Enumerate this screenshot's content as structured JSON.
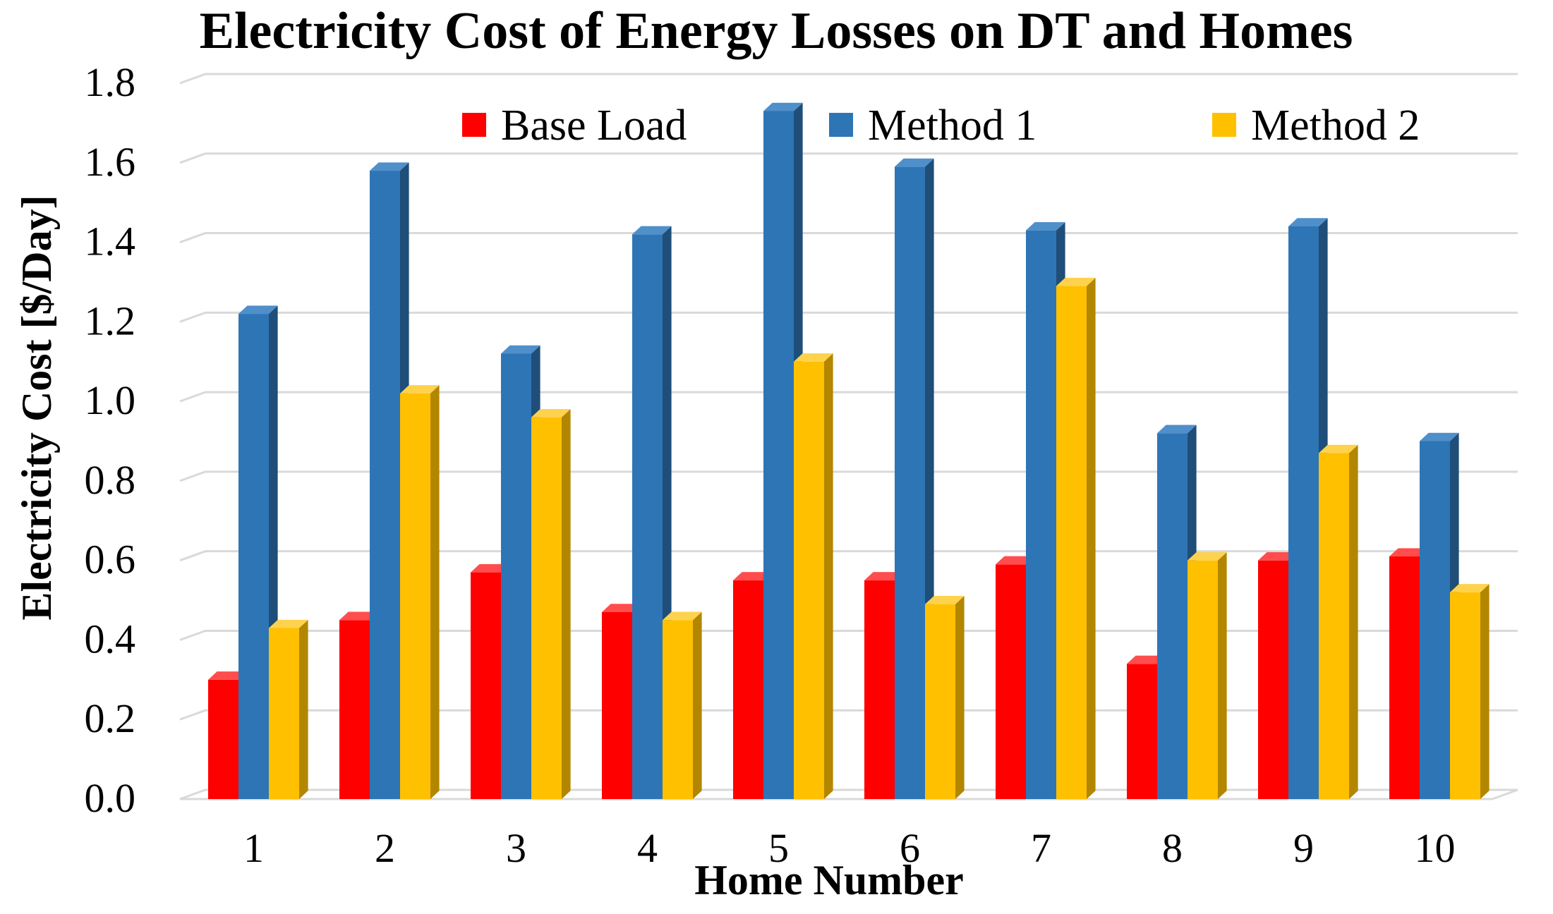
{
  "chart_data": {
    "type": "bar",
    "title": "Electricity Cost of Energy Losses on DT and Homes",
    "xlabel": "Home Number",
    "ylabel": "Electricity Cost  [$/Day]",
    "categories": [
      "1",
      "2",
      "3",
      "4",
      "5",
      "6",
      "7",
      "8",
      "9",
      "10"
    ],
    "ylim": [
      0,
      1.8
    ],
    "yticks": [
      "0.0",
      "0.2",
      "0.4",
      "0.6",
      "0.8",
      "1.0",
      "1.2",
      "1.4",
      "1.6",
      "1.8"
    ],
    "grid": true,
    "legend_position": "top",
    "series": [
      {
        "name": "Base Load",
        "color": "#ff0000",
        "side": "#b30000",
        "top": "#ff4d4d",
        "values": [
          0.3,
          0.45,
          0.57,
          0.47,
          0.55,
          0.55,
          0.59,
          0.34,
          0.6,
          0.61
        ]
      },
      {
        "name": "Method 1",
        "color": "#2e75b6",
        "side": "#1f4e79",
        "top": "#4f8fca",
        "values": [
          1.22,
          1.58,
          1.12,
          1.42,
          1.73,
          1.59,
          1.43,
          0.92,
          1.44,
          0.9
        ]
      },
      {
        "name": "Method 2",
        "color": "#ffc000",
        "side": "#b38600",
        "top": "#ffd24d",
        "values": [
          0.43,
          1.02,
          0.96,
          0.45,
          1.1,
          0.49,
          1.29,
          0.6,
          0.87,
          0.52
        ]
      }
    ]
  }
}
